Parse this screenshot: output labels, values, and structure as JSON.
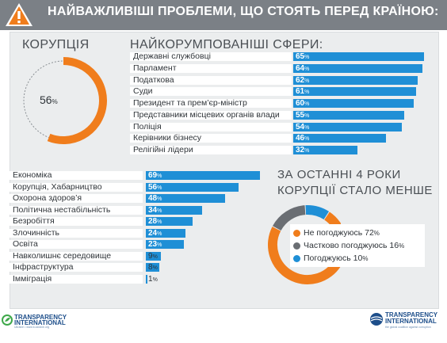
{
  "header": {
    "title": "НАЙВАЖЛИВІШІ ПРОБЛЕМИ, ЩО СТОЯТЬ ПЕРЕД КРАЇНОЮ:",
    "icon": "warning-icon",
    "bg_color": "#7b8086"
  },
  "corruption_gauge": {
    "title": "КОРУПЦІЯ",
    "value": "56",
    "unit": "%",
    "fraction": 0.56,
    "color": "#f07d1c"
  },
  "sectors": {
    "title": "НАЙКОРУМПОВАНІШІ СФЕРИ:",
    "unit": "%",
    "items": [
      {
        "label": "Державні службовці",
        "value": 65
      },
      {
        "label": "Парламент",
        "value": 64
      },
      {
        "label": "Податкова",
        "value": 62
      },
      {
        "label": "Суди",
        "value": 61
      },
      {
        "label": "Президент та прем’єр-міністр",
        "value": 60
      },
      {
        "label": "Представники місцевих органів влади",
        "value": 55
      },
      {
        "label": "Поліція",
        "value": 54
      },
      {
        "label": "Керівники бізнесу",
        "value": 46
      },
      {
        "label": "Релігійні лідери",
        "value": 32
      }
    ]
  },
  "problems": {
    "unit": "%",
    "items": [
      {
        "label": "Економіка",
        "value": 69
      },
      {
        "label": "Корупція, Хабарництво",
        "value": 56
      },
      {
        "label": "Охорона здоров’я",
        "value": 48
      },
      {
        "label": "Політична нестабільність",
        "value": 34
      },
      {
        "label": "Безробіття",
        "value": 28
      },
      {
        "label": "Злочинність",
        "value": 24
      },
      {
        "label": "Освіта",
        "value": 23
      },
      {
        "label": "Навколишнє середовище",
        "value": 9
      },
      {
        "label": "Інфраструктура",
        "value": 8
      },
      {
        "label": "Імміграція",
        "value": 1
      }
    ]
  },
  "survey": {
    "title_line1": "ЗА ОСТАННІ 4 РОКИ",
    "title_line2": "КОРУПЦІЇ СТАЛО МЕНШЕ",
    "unit": "%",
    "items": [
      {
        "label": "Не погоджуюсь",
        "value": 72,
        "color": "#f07d1c"
      },
      {
        "label": "Частково погоджуюсь",
        "value": 16,
        "color": "#6a6e73"
      },
      {
        "label": "Погоджуюсь",
        "value": 10,
        "color": "#1f8fd6"
      }
    ]
  },
  "footer": {
    "left_logo_line1": "TRANSPARENCY",
    "left_logo_line2": "INTERNATIONAL",
    "left_tagline": "Ukraine   •   www.ti-ukraine.org",
    "right_logo_line1": "TRANSPARENCY",
    "right_logo_line2": "INTERNATIONAL",
    "right_tagline": "the global coalition against corruption"
  },
  "chart_data": [
    {
      "type": "pie",
      "title": "КОРУПЦІЯ",
      "categories": [
        "КОРУПЦІЯ"
      ],
      "values": [
        56
      ]
    },
    {
      "type": "bar",
      "title": "НАЙКОРУМПОВАНІШІ СФЕРИ:",
      "categories": [
        "Державні службовці",
        "Парламент",
        "Податкова",
        "Суди",
        "Президент та прем’єр-міністр",
        "Представники місцевих органів влади",
        "Поліція",
        "Керівники бізнесу",
        "Релігійні лідери"
      ],
      "values": [
        65,
        64,
        62,
        61,
        60,
        55,
        54,
        46,
        32
      ],
      "orientation": "horizontal"
    },
    {
      "type": "bar",
      "title": "НАЙВАЖЛИВІШІ ПРОБЛЕМИ, ЩО СТОЯТЬ ПЕРЕД КРАЇНОЮ:",
      "categories": [
        "Економіка",
        "Корупція, Хабарництво",
        "Охорона здоров’я",
        "Політична нестабільність",
        "Безробіття",
        "Злочинність",
        "Освіта",
        "Навколишнє середовище",
        "Інфраструктура",
        "Імміграція"
      ],
      "values": [
        69,
        56,
        48,
        34,
        28,
        24,
        23,
        9,
        8,
        1
      ],
      "orientation": "horizontal"
    },
    {
      "type": "pie",
      "title": "ЗА ОСТАННІ 4 РОКИ КОРУПЦІЇ СТАЛО МЕНШЕ",
      "categories": [
        "Не погоджуюсь",
        "Частково погоджуюсь",
        "Погоджуюсь"
      ],
      "values": [
        72,
        16,
        10
      ]
    }
  ]
}
